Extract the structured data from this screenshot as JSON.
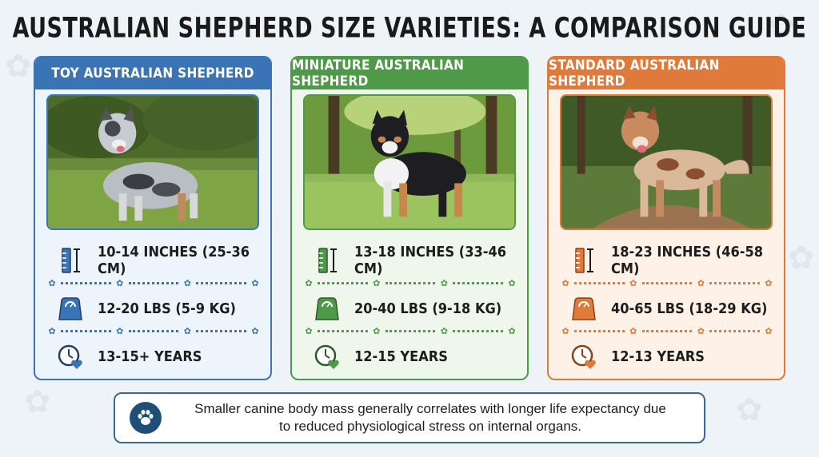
{
  "title": "AUSTRALIAN SHEPHERD SIZE VARIETIES: A COMPARISON GUIDE",
  "cards": [
    {
      "name": "TOY AUSTRALIAN SHEPHERD",
      "color": "#3a74b4",
      "light": "#eef4fb",
      "height": "10-14 INCHES (25-36 CM)",
      "weight": "12-20 LBS (5-9 KG)",
      "lifespan": "13-15+ YEARS"
    },
    {
      "name": "MINIATURE AUSTRALIAN SHEPHERD",
      "color": "#4e9a48",
      "light": "#eff7ec",
      "height": "13-18 INCHES (33-46 CM)",
      "weight": "20-40 LBS (9-18 KG)",
      "lifespan": "12-15 YEARS"
    },
    {
      "name": "STANDARD AUSTRALIAN SHEPHERD",
      "color": "#e07a3a",
      "light": "#fdf1e8",
      "height": "18-23 INCHES (46-58 CM)",
      "weight": "40-65 LBS (18-29 KG)",
      "lifespan": "12-13 YEARS"
    }
  ],
  "icons": {
    "height": "ruler-icon",
    "weight": "scale-icon",
    "lifespan": "clock-heart-icon",
    "separator": "paw-icon",
    "note": "paw-icon"
  },
  "note": {
    "line1": "Smaller canine body mass generally correlates with longer life expectancy due",
    "line2": "to reduced physiological stress on internal organs."
  }
}
